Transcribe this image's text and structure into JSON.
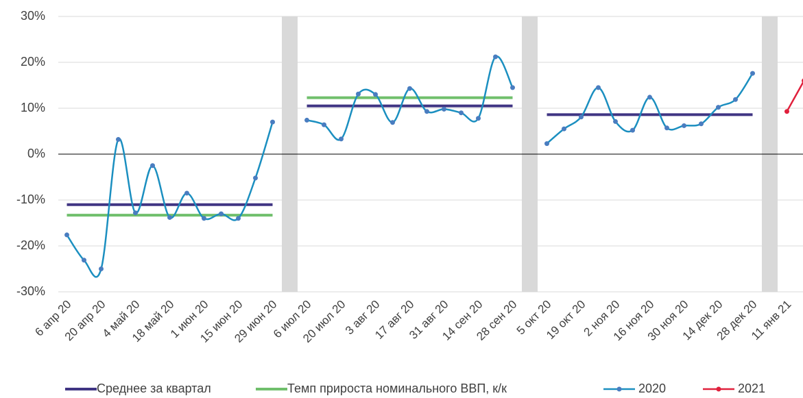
{
  "chart_data": {
    "type": "line",
    "categories": [
      "6 апр 20",
      null,
      "20 апр 20",
      null,
      "4 май 20",
      null,
      "18 май 20",
      null,
      "1 июн 20",
      null,
      "15 июн 20",
      null,
      "29 июн 20",
      null,
      "6 июл 20",
      null,
      "20 июл 20",
      null,
      "3 авг 20",
      null,
      "17 авг 20",
      null,
      "31 авг 20",
      null,
      "14 сен 20",
      null,
      "28 сен 20",
      null,
      "5 окт 20",
      null,
      "19 окт 20",
      null,
      "2 ноя 20",
      null,
      "16 ноя 20",
      null,
      "30 ноя 20",
      null,
      "14 дек 20",
      null,
      "28 дек 20",
      null,
      "11 янв 21",
      null
    ],
    "series": [
      {
        "name": "Среднее за квартал",
        "color": "#403583",
        "smooth": false,
        "markers": false,
        "values": [
          -11,
          -11,
          -11,
          -11,
          -11,
          -11,
          -11,
          -11,
          -11,
          -11,
          -11,
          -11,
          -11,
          null,
          10.5,
          10.5,
          10.5,
          10.5,
          10.5,
          10.5,
          10.5,
          10.5,
          10.5,
          10.5,
          10.5,
          10.5,
          10.5,
          null,
          8.6,
          8.6,
          8.6,
          8.6,
          8.6,
          8.6,
          8.6,
          8.6,
          8.6,
          8.6,
          8.6,
          8.6,
          8.6,
          null,
          null,
          null
        ]
      },
      {
        "name": "Темп прироста номинального ВВП, к/к",
        "color": "#70bf6c",
        "smooth": false,
        "markers": false,
        "values": [
          -13.3,
          -13.3,
          -13.3,
          -13.3,
          -13.3,
          -13.3,
          -13.3,
          -13.3,
          -13.3,
          -13.3,
          -13.3,
          -13.3,
          -13.3,
          null,
          12.3,
          12.3,
          12.3,
          12.3,
          12.3,
          12.3,
          12.3,
          12.3,
          12.3,
          12.3,
          12.3,
          12.3,
          12.3,
          null,
          null,
          null,
          null,
          null,
          null,
          null,
          null,
          null,
          null,
          null,
          null,
          null,
          null,
          null,
          null,
          null
        ]
      },
      {
        "name": "2020",
        "color": "#1b8fc0",
        "marker_color": "#4a7dc0",
        "smooth": true,
        "markers": true,
        "values": [
          -17.6,
          -23.1,
          -25,
          3.2,
          -12.8,
          -2.5,
          -13.8,
          -8.5,
          -14,
          -13,
          -14,
          -5.2,
          7,
          null,
          7.4,
          6.4,
          3.3,
          13.1,
          13,
          6.9,
          14.3,
          9.3,
          9.8,
          9,
          7.8,
          21.2,
          14.5,
          null,
          2.3,
          5.5,
          8.1,
          14.5,
          7.1,
          5.2,
          12.4,
          5.7,
          6.2,
          6.6,
          10.2,
          11.9,
          17.6,
          null,
          null,
          null
        ]
      },
      {
        "name": "2021",
        "color": "#e0203c",
        "marker_color": "#e0203c",
        "smooth": true,
        "markers": true,
        "values": [
          null,
          null,
          null,
          null,
          null,
          null,
          null,
          null,
          null,
          null,
          null,
          null,
          null,
          null,
          null,
          null,
          null,
          null,
          null,
          null,
          null,
          null,
          null,
          null,
          null,
          null,
          null,
          null,
          null,
          null,
          null,
          null,
          null,
          null,
          null,
          null,
          null,
          null,
          null,
          null,
          null,
          null,
          9.3,
          16
        ]
      }
    ],
    "ylim": [
      -30,
      30
    ],
    "yticks": [
      {
        "value": -30,
        "label": "-30%"
      },
      {
        "value": -20,
        "label": "-20%"
      },
      {
        "value": -10,
        "label": "-10%"
      },
      {
        "value": 0,
        "label": "0%"
      },
      {
        "value": 10,
        "label": "10%"
      },
      {
        "value": 20,
        "label": "20%"
      },
      {
        "value": 30,
        "label": "30%"
      }
    ],
    "grid": true,
    "legend": "bottom"
  }
}
